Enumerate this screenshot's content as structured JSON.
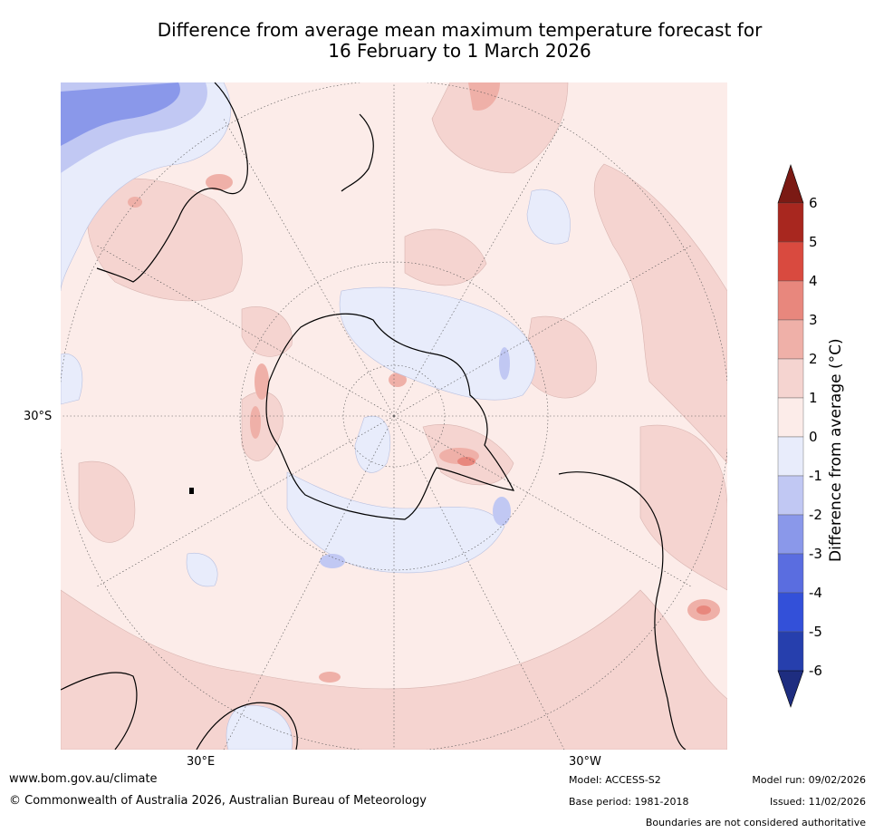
{
  "title": {
    "line1": "Difference from average mean maximum temperature forecast for",
    "line2": "16 February to 1 March 2026"
  },
  "axes": {
    "lat_label": "30°S",
    "lon_label_left": "30°E",
    "lon_label_right": "30°W"
  },
  "colorbar": {
    "label": "Difference from average (°C)",
    "ticks": [
      "6",
      "5",
      "4",
      "3",
      "2",
      "1",
      "0",
      "-1",
      "-2",
      "-3",
      "-4",
      "-5",
      "-6"
    ],
    "colors": {
      "gt6": "#7b1a14",
      "5to6": "#a8271f",
      "4to5": "#d94a3f",
      "3to4": "#e8877d",
      "2to3": "#efb0a8",
      "1to2": "#f5d4d0",
      "0to1": "#fcece9",
      "m1to0": "#e8ecfb",
      "m2tom1": "#c1c8f3",
      "m3tom2": "#8a98ea",
      "m4tom3": "#5a6de0",
      "m5tom4": "#3350d9",
      "m6tom5": "#263fad",
      "ltm6": "#1e2d80"
    }
  },
  "footer": {
    "url": "www.bom.gov.au/climate",
    "copyright": "© Commonwealth of Australia 2026, Australian Bureau of Meteorology",
    "model": "Model: ACCESS-S2",
    "base_period": "Base period: 1981-2018",
    "model_run": "Model run: 09/02/2026",
    "issued": "Issued: 11/02/2026",
    "disclaimer": "Boundaries are not considered authoritative"
  }
}
